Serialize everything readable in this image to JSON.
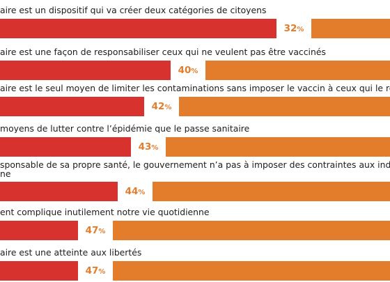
{
  "colors": {
    "left": "#d7322e",
    "right": "#e37d2c",
    "text": "#1d1d1b"
  },
  "chart_data": {
    "type": "bar",
    "orientation": "horizontal",
    "stacked": true,
    "categories": [
      "aire est un dispositif qui va créer deux catégories de citoyens",
      "aire est une façon de responsabiliser ceux qui ne veulent pas être vaccinés",
      "aire est le seul moyen de limiter les contaminations sans imposer le vaccin à ceux qui le refu",
      "moyens de lutter contre l’épidémie que le passe sanitaire",
      "sponsable de sa propre santé, le gouvernement n’a pas à imposer des contraintes aux indivi\nne",
      "ent complique inutilement notre vie quotidienne",
      "aire est une atteinte aux libertés"
    ],
    "values": [
      32,
      40,
      42,
      43,
      44,
      47,
      47
    ],
    "value_labels": [
      "32",
      "40",
      "42",
      "43",
      "44",
      "47",
      "47"
    ],
    "unit": "%"
  }
}
